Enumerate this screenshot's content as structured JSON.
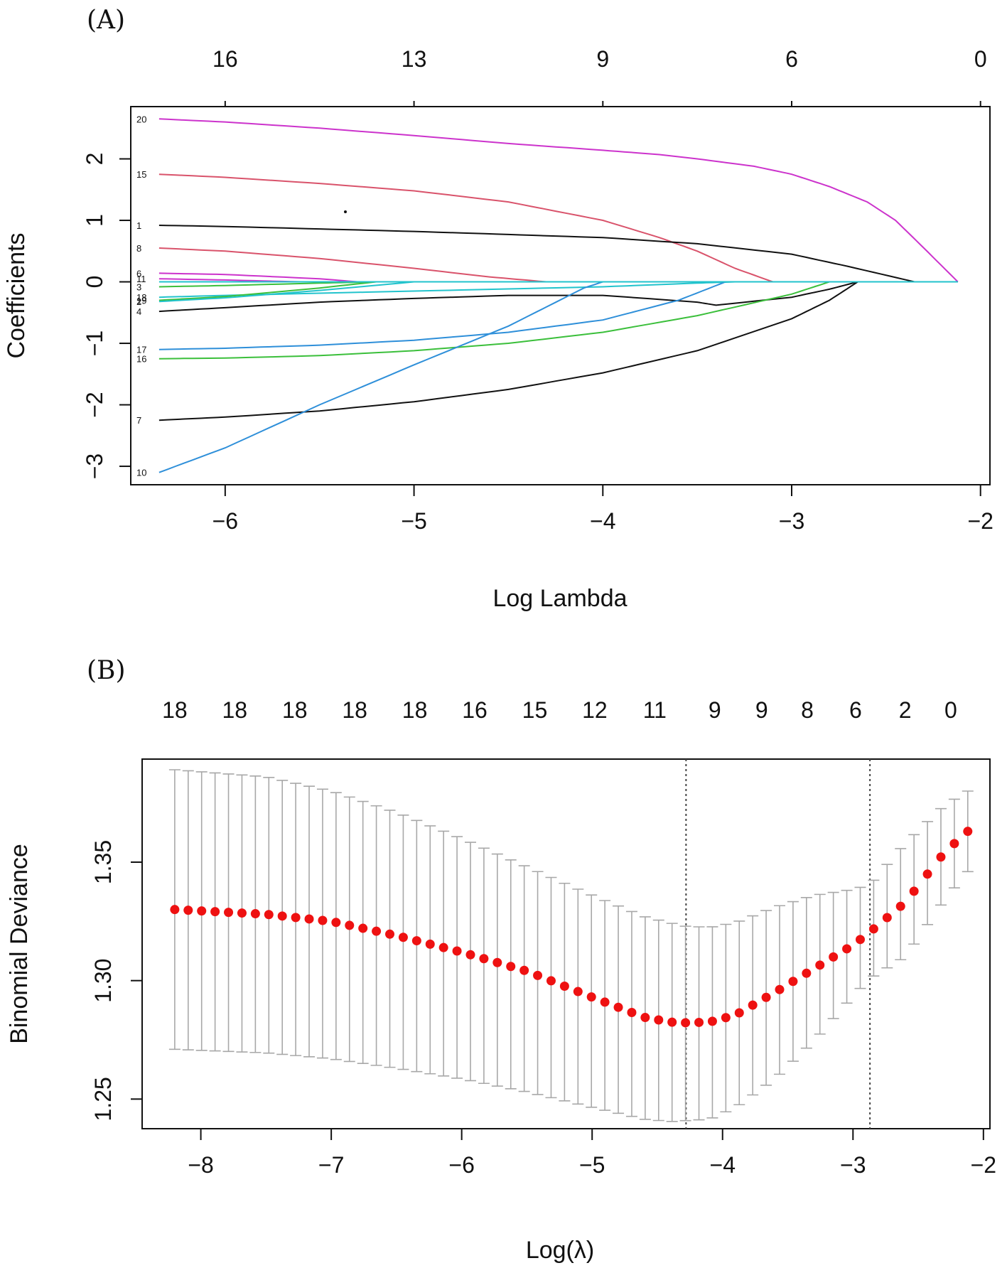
{
  "chart_data": [
    {
      "panel": "(A)",
      "type": "line",
      "xlabel": "Log Lambda",
      "ylabel": "Coefficients",
      "xlim": [
        -6.5,
        -1.95
      ],
      "ylim": [
        -3.3,
        2.85
      ],
      "xticks": [
        -6,
        -5,
        -4,
        -3,
        -2
      ],
      "xtick_labels": [
        "−6",
        "−5",
        "−4",
        "−3",
        "−2"
      ],
      "yticks": [
        -3,
        -2,
        -1,
        0,
        1,
        2
      ],
      "ytick_labels": [
        "−3",
        "−2",
        "−1",
        "0",
        "1",
        "2"
      ],
      "top_axis": {
        "positions": [
          -6,
          -5,
          -4,
          -3,
          -2
        ],
        "labels": [
          "16",
          "13",
          "9",
          "6",
          "0"
        ]
      },
      "series": [
        {
          "name": "20",
          "color": "#CC33CC",
          "x": [
            -6.35,
            -6.0,
            -5.5,
            -5.0,
            -4.5,
            -4.0,
            -3.7,
            -3.5,
            -3.2,
            -3.0,
            -2.8,
            -2.6,
            -2.45,
            -2.3,
            -2.12
          ],
          "values": [
            2.65,
            2.6,
            2.5,
            2.38,
            2.25,
            2.14,
            2.07,
            2.0,
            1.88,
            1.75,
            1.55,
            1.3,
            1.0,
            0.55,
            0.0
          ]
        },
        {
          "name": "15",
          "color": "#D9536B",
          "x": [
            -6.35,
            -6.0,
            -5.5,
            -5.0,
            -4.5,
            -4.0,
            -3.7,
            -3.5,
            -3.3,
            -3.1
          ],
          "values": [
            1.75,
            1.7,
            1.6,
            1.48,
            1.3,
            1.0,
            0.72,
            0.5,
            0.22,
            0.0
          ]
        },
        {
          "name": "1",
          "color": "#111111",
          "x": [
            -6.35,
            -6.0,
            -5.5,
            -5.0,
            -4.5,
            -4.0,
            -3.5,
            -3.0,
            -2.7,
            -2.35
          ],
          "values": [
            0.92,
            0.9,
            0.86,
            0.82,
            0.77,
            0.72,
            0.62,
            0.45,
            0.25,
            0.0
          ]
        },
        {
          "name": "8",
          "color": "#D9536B",
          "x": [
            -6.35,
            -6.0,
            -5.5,
            -5.0,
            -4.6,
            -4.3
          ],
          "values": [
            0.55,
            0.5,
            0.38,
            0.22,
            0.08,
            0.0
          ]
        },
        {
          "name": "6",
          "color": "#CC33CC",
          "x": [
            -6.35,
            -6.0,
            -5.5,
            -5.3
          ],
          "values": [
            0.14,
            0.12,
            0.05,
            0.0
          ]
        },
        {
          "name": "11",
          "color": "#CC33CC",
          "x": [
            -6.35,
            -6.0,
            -5.6
          ],
          "values": [
            0.05,
            0.03,
            0.0
          ]
        },
        {
          "name": "3",
          "color": "#3BBF3B",
          "x": [
            -6.35,
            -6.0,
            -5.5,
            -5.2
          ],
          "values": [
            -0.08,
            -0.06,
            -0.02,
            0.0
          ]
        },
        {
          "name": "18",
          "color": "#22C3CC",
          "x": [
            -6.35,
            -6.0,
            -5.0,
            -4.0,
            -3.5,
            -3.3
          ],
          "values": [
            -0.25,
            -0.22,
            -0.15,
            -0.08,
            -0.02,
            0.0
          ]
        },
        {
          "name": "19",
          "color": "#3BBF3B",
          "x": [
            -6.35,
            -6.0,
            -5.5,
            -5.2
          ],
          "values": [
            -0.3,
            -0.24,
            -0.1,
            0.0
          ]
        },
        {
          "name": "2",
          "color": "#22C3CC",
          "x": [
            -6.35,
            -6.0,
            -5.5,
            -5.0
          ],
          "values": [
            -0.32,
            -0.26,
            -0.14,
            0.0
          ]
        },
        {
          "name": "4",
          "color": "#111111",
          "x": [
            -6.35,
            -6.0,
            -5.5,
            -5.0,
            -4.5,
            -4.0,
            -3.5,
            -3.4,
            -3.0,
            -2.8,
            -2.65
          ],
          "values": [
            -0.48,
            -0.42,
            -0.33,
            -0.27,
            -0.22,
            -0.22,
            -0.33,
            -0.38,
            -0.25,
            -0.12,
            0.0
          ]
        },
        {
          "name": "17",
          "color": "#2E8FD9",
          "x": [
            -6.35,
            -6.0,
            -5.5,
            -5.0,
            -4.5,
            -4.0,
            -3.6,
            -3.35
          ],
          "values": [
            -1.1,
            -1.08,
            -1.03,
            -0.95,
            -0.82,
            -0.62,
            -0.3,
            0.0
          ]
        },
        {
          "name": "16",
          "color": "#3BBF3B",
          "x": [
            -6.35,
            -6.0,
            -5.5,
            -5.0,
            -4.5,
            -4.0,
            -3.5,
            -3.0,
            -2.8
          ],
          "values": [
            -1.25,
            -1.24,
            -1.2,
            -1.12,
            -1.0,
            -0.82,
            -0.55,
            -0.2,
            0.0
          ]
        },
        {
          "name": "7",
          "color": "#111111",
          "x": [
            -6.35,
            -6.0,
            -5.5,
            -5.0,
            -4.5,
            -4.0,
            -3.5,
            -3.0,
            -2.8,
            -2.65
          ],
          "values": [
            -2.25,
            -2.2,
            -2.1,
            -1.95,
            -1.75,
            -1.48,
            -1.12,
            -0.6,
            -0.3,
            0.0
          ]
        },
        {
          "name": "10",
          "color": "#2E8FD9",
          "x": [
            -6.35,
            -6.0,
            -5.5,
            -5.0,
            -4.5,
            -4.1,
            -4.0
          ],
          "values": [
            -3.1,
            -2.7,
            -2.0,
            -1.35,
            -0.72,
            -0.1,
            0.0
          ]
        },
        {
          "name": "",
          "color": "#22C3CC",
          "x": [
            -6.35,
            -2.12
          ],
          "values": [
            0.0,
            0.0
          ]
        }
      ]
    },
    {
      "panel": "(B)",
      "type": "scatter",
      "xlabel": "Log(λ)",
      "ylabel": "Binomial Deviance",
      "xlim": [
        -8.45,
        -1.95
      ],
      "ylim": [
        1.2375,
        1.3935
      ],
      "xticks": [
        -8,
        -7,
        -6,
        -5,
        -4,
        -3,
        -2
      ],
      "xtick_labels": [
        "−8",
        "−7",
        "−6",
        "−5",
        "−4",
        "−3",
        "−2"
      ],
      "yticks": [
        1.25,
        1.3,
        1.35
      ],
      "ytick_labels": [
        "1.25",
        "1.30",
        "1.35"
      ],
      "top_axis": {
        "positions": [
          -8.2,
          -7.74,
          -7.28,
          -6.82,
          -6.36,
          -5.9,
          -5.44,
          -4.98,
          -4.52,
          -4.06,
          -3.7,
          -3.35,
          -2.98,
          -2.6,
          -2.25
        ],
        "labels": [
          "18",
          "18",
          "18",
          "18",
          "18",
          "16",
          "15",
          "12",
          "11",
          "9",
          "9",
          "8",
          "6",
          "2",
          "0"
        ]
      },
      "vlines": [
        -4.28,
        -2.87
      ],
      "points": {
        "x_start": -8.2,
        "x_end": -2.12,
        "count": 60,
        "mean_knots": {
          "x": [
            -8.2,
            -7.5,
            -7.0,
            -6.5,
            -6.0,
            -5.5,
            -5.0,
            -4.6,
            -4.4,
            -4.28,
            -4.1,
            -3.9,
            -3.6,
            -3.3,
            -3.0,
            -2.87,
            -2.6,
            -2.3,
            -2.12
          ],
          "y": [
            1.33,
            1.328,
            1.325,
            1.319,
            1.312,
            1.304,
            1.293,
            1.2845,
            1.2825,
            1.2822,
            1.2825,
            1.2855,
            1.295,
            1.305,
            1.315,
            1.3205,
            1.333,
            1.354,
            1.363
          ]
        },
        "upper_knots": {
          "x": [
            -8.2,
            -7.5,
            -7.0,
            -6.5,
            -6.0,
            -5.5,
            -5.0,
            -4.6,
            -4.3,
            -4.1,
            -3.9,
            -3.6,
            -3.3,
            -3.0,
            -2.87,
            -2.6,
            -2.3,
            -2.12
          ],
          "y": [
            1.389,
            1.386,
            1.38,
            1.371,
            1.36,
            1.348,
            1.336,
            1.327,
            1.323,
            1.3225,
            1.3245,
            1.331,
            1.336,
            1.3385,
            1.3405,
            1.358,
            1.374,
            1.38
          ]
        },
        "lower_knots": {
          "x": [
            -8.2,
            -7.5,
            -7.0,
            -6.5,
            -6.0,
            -5.5,
            -5.0,
            -4.6,
            -4.4,
            -4.1,
            -3.9,
            -3.6,
            -3.3,
            -3.0,
            -2.87,
            -2.6,
            -2.3,
            -2.12
          ],
          "y": [
            1.271,
            1.2695,
            1.267,
            1.263,
            1.2585,
            1.253,
            1.2465,
            1.2415,
            1.2405,
            1.2415,
            1.2465,
            1.2585,
            1.2745,
            1.2935,
            1.301,
            1.31,
            1.334,
            1.346
          ]
        }
      }
    }
  ],
  "colors": {
    "points": "#EE1111",
    "error_bars": "#A8A8A8",
    "axis": "#111111",
    "vline": "#444444"
  }
}
